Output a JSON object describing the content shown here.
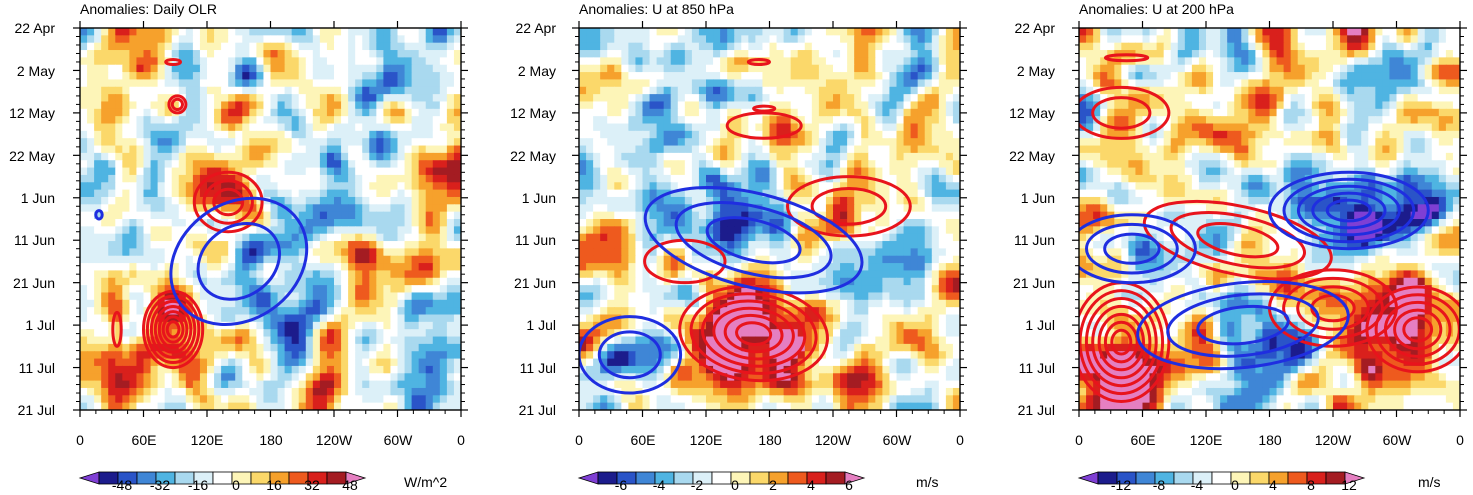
{
  "colors": {
    "positive_contour": "#e8141c",
    "negative_contour": "#1f2ee0",
    "palette": [
      "#7f3fd4",
      "#1c1c8c",
      "#2a54c8",
      "#3f86d6",
      "#4fb4e2",
      "#a9d9ef",
      "#dcf0f8",
      "#ffffff",
      "#fdf5b8",
      "#fbd86a",
      "#f6a12c",
      "#ee5a1e",
      "#d9201c",
      "#a41c22",
      "#e57fc1"
    ]
  },
  "chart_data": [
    {
      "type": "heatmap",
      "title": "Anomalies: Daily OLR",
      "x_range": [
        0,
        360
      ],
      "y_range": [
        "22 Apr",
        "21 Jul"
      ],
      "x_ticks": [
        "0",
        "60E",
        "120E",
        "180",
        "120W",
        "60W",
        "0"
      ],
      "y_ticks": [
        "22 Apr",
        "2 May",
        "12 May",
        "22 May",
        "1 Jun",
        "11 Jun",
        "21 Jun",
        "1 Jul",
        "11 Jul",
        "21 Jul"
      ],
      "colorbar": {
        "units": "W/m^2",
        "labels": [
          "-48",
          "-32",
          "-16",
          "0",
          "16",
          "32",
          "48"
        ],
        "levels": [
          -56,
          -48,
          -40,
          -32,
          -24,
          -16,
          -8,
          0,
          8,
          16,
          24,
          32,
          40,
          48,
          56
        ]
      },
      "contours": [
        {
          "sign": "positive",
          "lon": 88,
          "day": 71,
          "rx": 28,
          "ry": 9,
          "levels": 7
        },
        {
          "sign": "positive",
          "lon": 140,
          "day": 41,
          "rx": 32,
          "ry": 7,
          "levels": 3
        },
        {
          "sign": "positive",
          "lon": 92,
          "day": 18,
          "rx": 8,
          "ry": 2,
          "levels": 2
        },
        {
          "sign": "positive",
          "lon": 88,
          "day": 8,
          "rx": 7,
          "ry": 0.6,
          "levels": 1
        },
        {
          "sign": "positive",
          "lon": 35,
          "day": 71,
          "rx": 4,
          "ry": 4,
          "levels": 1
        },
        {
          "sign": "negative",
          "lon": 150,
          "day": 55,
          "rx": 55,
          "ry": 17,
          "levels": 2,
          "tilt": 55
        },
        {
          "sign": "negative",
          "lon": 18,
          "day": 44,
          "rx": 3,
          "ry": 1,
          "levels": 1
        }
      ]
    },
    {
      "type": "heatmap",
      "title": "Anomalies: U at 850 hPa",
      "x_range": [
        0,
        360
      ],
      "y_range": [
        "22 Apr",
        "21 Jul"
      ],
      "x_ticks": [
        "0",
        "60E",
        "120E",
        "180",
        "120W",
        "60W",
        "0"
      ],
      "y_ticks": [
        "22 Apr",
        "2 May",
        "12 May",
        "22 May",
        "1 Jun",
        "11 Jun",
        "21 Jun",
        "1 Jul",
        "11 Jul",
        "21 Jul"
      ],
      "colorbar": {
        "units": "m/s",
        "labels": [
          "-6",
          "-4",
          "-2",
          "0",
          "2",
          "4",
          "6"
        ],
        "levels": [
          -7,
          -6,
          -5,
          -4,
          -3,
          -2,
          -1,
          0,
          1,
          2,
          3,
          4,
          5,
          6,
          7
        ]
      },
      "contours": [
        {
          "sign": "positive",
          "lon": 165,
          "day": 72,
          "rx": 70,
          "ry": 11,
          "levels": 6,
          "tilt": 6
        },
        {
          "sign": "positive",
          "lon": 255,
          "day": 42,
          "rx": 58,
          "ry": 7,
          "levels": 2
        },
        {
          "sign": "positive",
          "lon": 175,
          "day": 23,
          "rx": 35,
          "ry": 3,
          "levels": 1
        },
        {
          "sign": "positive",
          "lon": 175,
          "day": 19,
          "rx": 10,
          "ry": 0.6,
          "levels": 1
        },
        {
          "sign": "positive",
          "lon": 170,
          "day": 8,
          "rx": 10,
          "ry": 0.6,
          "levels": 1
        },
        {
          "sign": "positive",
          "lon": 100,
          "day": 55,
          "rx": 38,
          "ry": 5,
          "levels": 1
        },
        {
          "sign": "negative",
          "lon": 165,
          "day": 50,
          "rx": 105,
          "ry": 11,
          "levels": 3,
          "tilt": 14
        },
        {
          "sign": "negative",
          "lon": 48,
          "day": 77,
          "rx": 48,
          "ry": 9,
          "levels": 2
        }
      ]
    },
    {
      "type": "heatmap",
      "title": "Anomalies: U at 200 hPa",
      "x_range": [
        0,
        360
      ],
      "y_range": [
        "22 Apr",
        "21 Jul"
      ],
      "x_ticks": [
        "0",
        "60E",
        "120E",
        "180",
        "120W",
        "60W",
        "0"
      ],
      "y_ticks": [
        "22 Apr",
        "2 May",
        "12 May",
        "22 May",
        "1 Jun",
        "11 Jun",
        "21 Jun",
        "1 Jul",
        "11 Jul",
        "21 Jul"
      ],
      "colorbar": {
        "units": "m/s",
        "labels": [
          "-12",
          "-8",
          "-4",
          "0",
          "4",
          "8",
          "12"
        ],
        "levels": [
          -14,
          -12,
          -10,
          -8,
          -6,
          -4,
          -2,
          0,
          2,
          4,
          6,
          8,
          10,
          12,
          14
        ]
      },
      "contours": [
        {
          "sign": "positive",
          "lon": 40,
          "day": 74,
          "rx": 45,
          "ry": 14,
          "levels": 7
        },
        {
          "sign": "positive",
          "lon": 320,
          "day": 71,
          "rx": 48,
          "ry": 10,
          "levels": 5
        },
        {
          "sign": "positive",
          "lon": 240,
          "day": 66,
          "rx": 60,
          "ry": 9,
          "levels": 4
        },
        {
          "sign": "positive",
          "lon": 150,
          "day": 50,
          "rx": 90,
          "ry": 8,
          "levels": 3,
          "tilt": 12
        },
        {
          "sign": "positive",
          "lon": 40,
          "day": 20,
          "rx": 45,
          "ry": 6,
          "levels": 2
        },
        {
          "sign": "positive",
          "lon": 45,
          "day": 7,
          "rx": 20,
          "ry": 0.7,
          "levels": 1
        },
        {
          "sign": "negative",
          "lon": 255,
          "day": 43,
          "rx": 75,
          "ry": 9,
          "levels": 5
        },
        {
          "sign": "negative",
          "lon": 50,
          "day": 52,
          "rx": 60,
          "ry": 8,
          "levels": 3
        },
        {
          "sign": "negative",
          "lon": 155,
          "day": 70,
          "rx": 100,
          "ry": 10,
          "levels": 3,
          "tilt": -6
        }
      ]
    }
  ]
}
